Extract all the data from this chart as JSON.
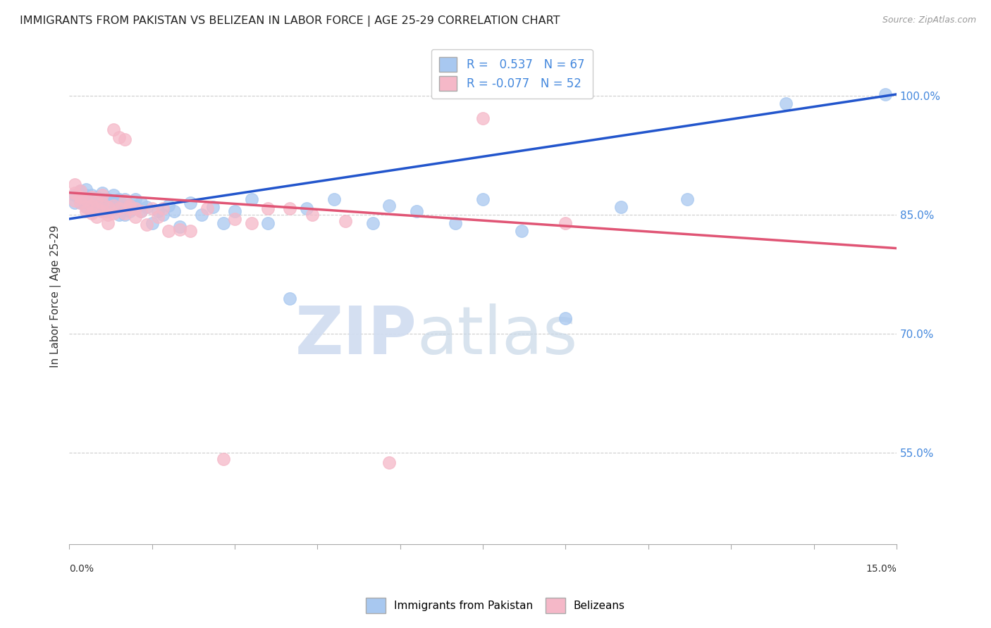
{
  "title": "IMMIGRANTS FROM PAKISTAN VS BELIZEAN IN LABOR FORCE | AGE 25-29 CORRELATION CHART",
  "source": "Source: ZipAtlas.com",
  "ylabel": "In Labor Force | Age 25-29",
  "ytick_labels": [
    "55.0%",
    "70.0%",
    "85.0%",
    "100.0%"
  ],
  "ytick_values": [
    0.55,
    0.7,
    0.85,
    1.0
  ],
  "xmin": 0.0,
  "xmax": 0.15,
  "ymin": 0.435,
  "ymax": 1.06,
  "r_pakistan": 0.537,
  "n_pakistan": 67,
  "r_belize": -0.077,
  "n_belize": 52,
  "color_pakistan": "#A8C8F0",
  "color_belize": "#F5B8C8",
  "color_line_pakistan": "#2255CC",
  "color_line_belize": "#E05575",
  "color_axis_right": "#4488DD",
  "color_grid": "#CCCCCC",
  "color_title": "#222222",
  "watermark_zip": "ZIP",
  "watermark_atlas": "atlas",
  "pakistan_x": [
    0.001,
    0.001,
    0.002,
    0.002,
    0.002,
    0.003,
    0.003,
    0.003,
    0.003,
    0.004,
    0.004,
    0.004,
    0.004,
    0.005,
    0.005,
    0.005,
    0.006,
    0.006,
    0.006,
    0.006,
    0.007,
    0.007,
    0.007,
    0.007,
    0.008,
    0.008,
    0.008,
    0.009,
    0.009,
    0.009,
    0.01,
    0.01,
    0.01,
    0.011,
    0.011,
    0.012,
    0.012,
    0.013,
    0.013,
    0.014,
    0.015,
    0.016,
    0.017,
    0.018,
    0.019,
    0.02,
    0.022,
    0.024,
    0.026,
    0.028,
    0.03,
    0.033,
    0.036,
    0.04,
    0.043,
    0.048,
    0.055,
    0.058,
    0.063,
    0.07,
    0.075,
    0.082,
    0.09,
    0.1,
    0.112,
    0.13,
    0.148
  ],
  "pakistan_y": [
    0.875,
    0.865,
    0.88,
    0.87,
    0.865,
    0.87,
    0.875,
    0.882,
    0.86,
    0.87,
    0.875,
    0.862,
    0.855,
    0.872,
    0.868,
    0.86,
    0.87,
    0.862,
    0.855,
    0.878,
    0.865,
    0.87,
    0.86,
    0.855,
    0.858,
    0.865,
    0.875,
    0.85,
    0.862,
    0.87,
    0.858,
    0.87,
    0.85,
    0.863,
    0.855,
    0.862,
    0.87,
    0.855,
    0.865,
    0.86,
    0.84,
    0.855,
    0.85,
    0.862,
    0.855,
    0.835,
    0.865,
    0.85,
    0.86,
    0.84,
    0.855,
    0.87,
    0.84,
    0.745,
    0.858,
    0.87,
    0.84,
    0.862,
    0.855,
    0.84,
    0.87,
    0.83,
    0.72,
    0.86,
    0.87,
    0.99,
    1.002
  ],
  "belize_x": [
    0.001,
    0.001,
    0.001,
    0.002,
    0.002,
    0.002,
    0.003,
    0.003,
    0.003,
    0.004,
    0.004,
    0.004,
    0.005,
    0.005,
    0.005,
    0.006,
    0.006,
    0.006,
    0.007,
    0.007,
    0.007,
    0.008,
    0.008,
    0.008,
    0.009,
    0.009,
    0.01,
    0.01,
    0.01,
    0.011,
    0.011,
    0.012,
    0.012,
    0.013,
    0.014,
    0.015,
    0.016,
    0.017,
    0.018,
    0.02,
    0.022,
    0.025,
    0.028,
    0.03,
    0.033,
    0.036,
    0.04,
    0.044,
    0.05,
    0.058,
    0.075,
    0.09
  ],
  "belize_y": [
    0.868,
    0.878,
    0.888,
    0.865,
    0.872,
    0.88,
    0.86,
    0.87,
    0.855,
    0.862,
    0.872,
    0.852,
    0.858,
    0.868,
    0.848,
    0.855,
    0.865,
    0.875,
    0.85,
    0.86,
    0.84,
    0.852,
    0.862,
    0.958,
    0.948,
    0.858,
    0.868,
    0.852,
    0.945,
    0.858,
    0.862,
    0.858,
    0.848,
    0.855,
    0.838,
    0.858,
    0.848,
    0.858,
    0.83,
    0.832,
    0.83,
    0.858,
    0.542,
    0.845,
    0.84,
    0.858,
    0.858,
    0.85,
    0.842,
    0.538,
    0.972,
    0.84
  ]
}
